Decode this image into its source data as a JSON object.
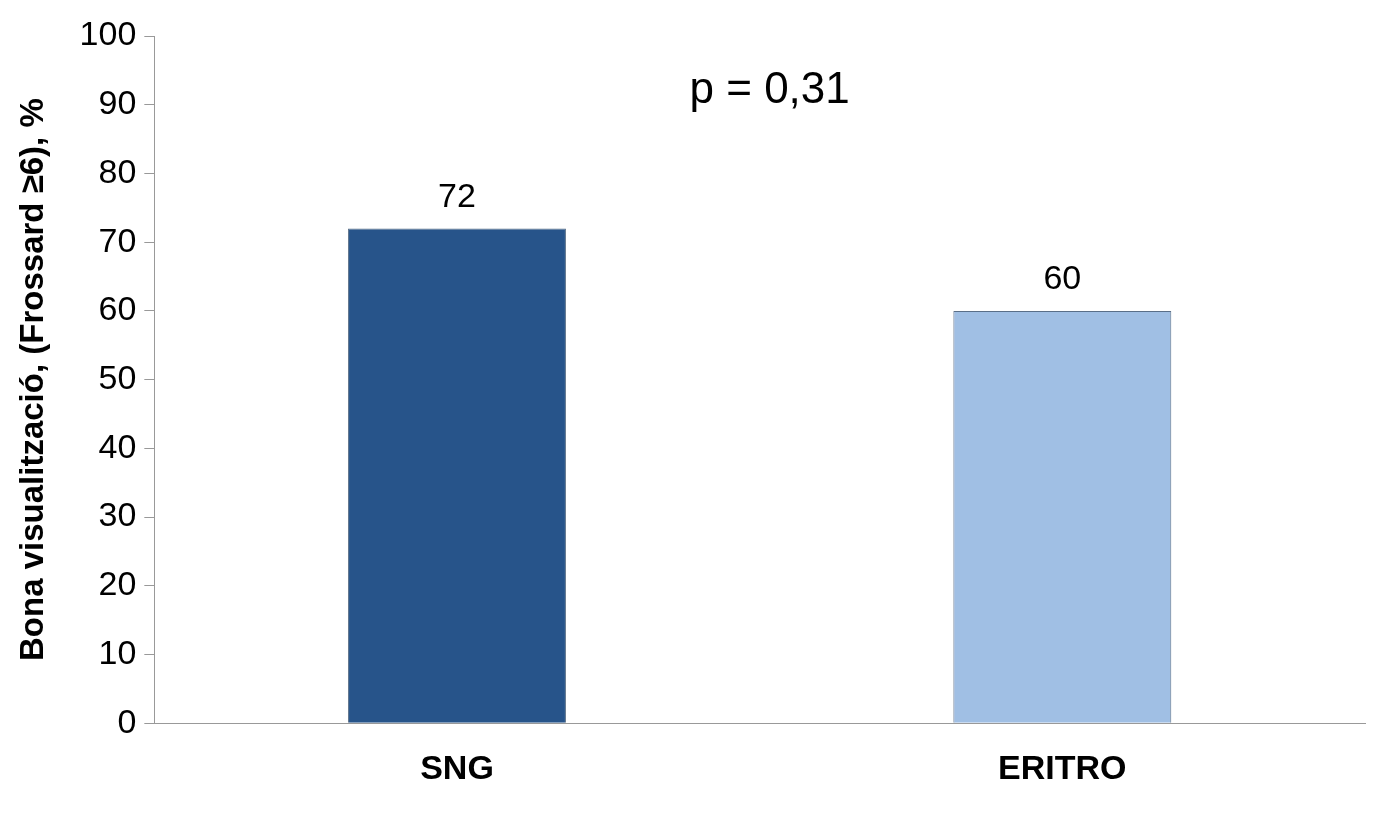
{
  "chart_data": {
    "type": "bar",
    "ylabel": "Bona visualització, (Frossard ≥6), %",
    "categories": [
      "SNG",
      "ERITRO"
    ],
    "values": [
      72,
      60
    ],
    "colors": [
      "#27548a",
      "#a0bfe4"
    ],
    "ylim": [
      0,
      100
    ],
    "yticks": [
      0,
      10,
      20,
      30,
      40,
      50,
      60,
      70,
      80,
      90,
      100
    ],
    "grid": false,
    "legend": false,
    "data_labels": true,
    "annotations": [
      "p = 0,31"
    ]
  }
}
